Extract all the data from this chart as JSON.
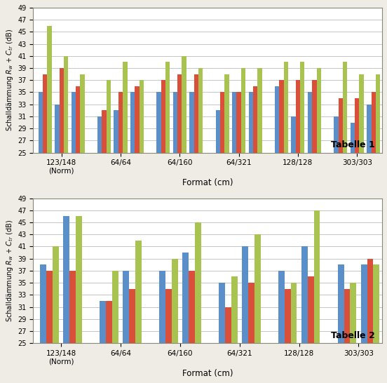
{
  "table1": {
    "categories": [
      "123/148\n(Norm)",
      "64/64",
      "64/160",
      "64/321",
      "128/128",
      "303/303"
    ],
    "blue": [
      35,
      33,
      35,
      31,
      32,
      35,
      35,
      35,
      35,
      32,
      35,
      35,
      36,
      31,
      35,
      31,
      30,
      33
    ],
    "red": [
      38,
      39,
      36,
      32,
      35,
      36,
      37,
      38,
      38,
      35,
      35,
      36,
      37,
      37,
      37,
      34,
      34,
      35
    ],
    "green": [
      46,
      41,
      38,
      37,
      40,
      37,
      40,
      41,
      39,
      38,
      39,
      39,
      40,
      40,
      39,
      40,
      38,
      38
    ],
    "colors": [
      "#5b8fc9",
      "#d94f3a",
      "#a8c34f"
    ],
    "ylabel": "Schalldämmung R_w + C_tr (dB)",
    "xlabel": "Format (cm)",
    "table_label": "Tabelle 1",
    "ylim": [
      25,
      49
    ],
    "yticks": [
      25,
      27,
      29,
      31,
      33,
      35,
      37,
      39,
      41,
      43,
      45,
      47,
      49
    ]
  },
  "table2": {
    "categories": [
      "123/148\n(Norm)",
      "64/64",
      "64/160",
      "64/321",
      "128/128",
      "303/303"
    ],
    "blue": [
      38,
      46,
      32,
      37,
      37,
      40,
      35,
      41,
      37,
      41,
      38,
      38
    ],
    "red": [
      37,
      37,
      32,
      34,
      34,
      37,
      31,
      35,
      34,
      36,
      34,
      39
    ],
    "green": [
      41,
      46,
      37,
      42,
      39,
      45,
      36,
      43,
      35,
      47,
      35,
      38
    ],
    "colors": [
      "#5b8fc9",
      "#d94f3a",
      "#a8c34f"
    ],
    "ylabel": "Schalldämmung R_w + C_tr (dB)",
    "xlabel": "Format (cm)",
    "table_label": "Tabelle 2",
    "ylim": [
      25,
      49
    ],
    "yticks": [
      25,
      27,
      29,
      31,
      33,
      35,
      37,
      39,
      41,
      43,
      45,
      47,
      49
    ]
  },
  "bg_color": "#eeece4",
  "panel_bg": "#ffffff",
  "grid_color": "#bbbbbb",
  "border_color": "#888877"
}
